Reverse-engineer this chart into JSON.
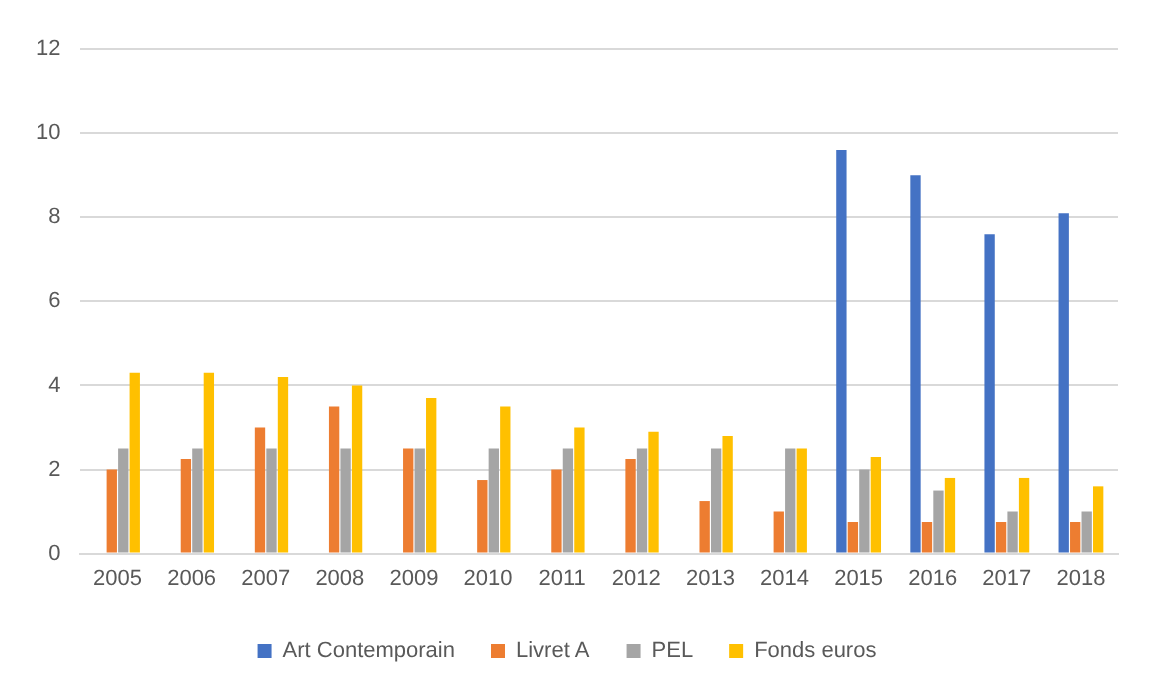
{
  "chart_data": {
    "type": "bar",
    "categories": [
      "2005",
      "2006",
      "2007",
      "2008",
      "2009",
      "2010",
      "2011",
      "2012",
      "2013",
      "2014",
      "2015",
      "2016",
      "2017",
      "2018"
    ],
    "series": [
      {
        "name": "Art Contemporain",
        "color": "#4472c4",
        "values": [
          null,
          null,
          null,
          null,
          null,
          null,
          null,
          null,
          null,
          null,
          9.6,
          9.0,
          7.6,
          8.1
        ]
      },
      {
        "name": "Livret A",
        "color": "#ed7d31",
        "values": [
          2.0,
          2.25,
          3.0,
          3.5,
          2.5,
          1.75,
          2.0,
          2.25,
          1.25,
          1.0,
          0.75,
          0.75,
          0.75,
          0.75
        ]
      },
      {
        "name": "PEL",
        "color": "#a5a5a5",
        "values": [
          2.5,
          2.5,
          2.5,
          2.5,
          2.5,
          2.5,
          2.5,
          2.5,
          2.5,
          2.5,
          2.0,
          1.5,
          1.0,
          1.0
        ]
      },
      {
        "name": "Fonds euros",
        "color": "#ffc000",
        "values": [
          4.3,
          4.3,
          4.2,
          4.0,
          3.7,
          3.5,
          3.0,
          2.9,
          2.8,
          2.5,
          2.3,
          1.8,
          1.8,
          1.6
        ]
      }
    ],
    "ylim": [
      0,
      12
    ],
    "yticks": [
      0,
      2,
      4,
      6,
      8,
      10,
      12
    ],
    "grid": "y",
    "legend": "bottom"
  }
}
